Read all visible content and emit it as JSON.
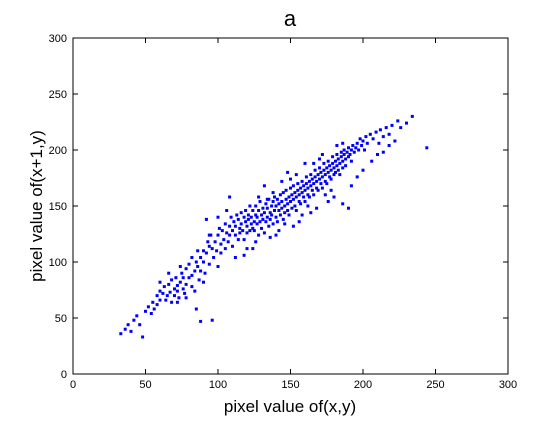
{
  "chart_data": {
    "type": "scatter",
    "title": "a",
    "xlabel": "pixel value of(x,y)",
    "ylabel": "pixel value of(x+1,y)",
    "xlim": [
      0,
      300
    ],
    "ylim": [
      0,
      300
    ],
    "xticks": [
      0,
      50,
      100,
      150,
      200,
      250,
      300
    ],
    "yticks": [
      0,
      50,
      100,
      150,
      200,
      250,
      300
    ],
    "grid": false,
    "legend": "none",
    "marker_color": "#0000ff",
    "points": [
      [
        33,
        36
      ],
      [
        36,
        40
      ],
      [
        38,
        44
      ],
      [
        40,
        38
      ],
      [
        42,
        48
      ],
      [
        44,
        52
      ],
      [
        46,
        44
      ],
      [
        48,
        33
      ],
      [
        50,
        56
      ],
      [
        52,
        60
      ],
      [
        54,
        54
      ],
      [
        55,
        64
      ],
      [
        56,
        58
      ],
      [
        58,
        70
      ],
      [
        58,
        62
      ],
      [
        60,
        66
      ],
      [
        60,
        74
      ],
      [
        62,
        72
      ],
      [
        63,
        78
      ],
      [
        64,
        66
      ],
      [
        65,
        70
      ],
      [
        66,
        80
      ],
      [
        67,
        73
      ],
      [
        68,
        64
      ],
      [
        68,
        84
      ],
      [
        70,
        76
      ],
      [
        70,
        70
      ],
      [
        71,
        86
      ],
      [
        72,
        79
      ],
      [
        72,
        74
      ],
      [
        73,
        68
      ],
      [
        74,
        82
      ],
      [
        75,
        90
      ],
      [
        76,
        76
      ],
      [
        76,
        86
      ],
      [
        77,
        72
      ],
      [
        78,
        94
      ],
      [
        78,
        80
      ],
      [
        80,
        86
      ],
      [
        80,
        98
      ],
      [
        82,
        88
      ],
      [
        82,
        78
      ],
      [
        84,
        92
      ],
      [
        85,
        100
      ],
      [
        85,
        58
      ],
      [
        86,
        96
      ],
      [
        87,
        84
      ],
      [
        88,
        104
      ],
      [
        88,
        92
      ],
      [
        88,
        47
      ],
      [
        90,
        110
      ],
      [
        90,
        100
      ],
      [
        91,
        90
      ],
      [
        92,
        108
      ],
      [
        93,
        118
      ],
      [
        94,
        98
      ],
      [
        94,
        114
      ],
      [
        95,
        124
      ],
      [
        96,
        112
      ],
      [
        97,
        104
      ],
      [
        98,
        118
      ],
      [
        99,
        110
      ],
      [
        100,
        124
      ],
      [
        100,
        96
      ],
      [
        101,
        130
      ],
      [
        102,
        116
      ],
      [
        102,
        108
      ],
      [
        103,
        128
      ],
      [
        104,
        120
      ],
      [
        105,
        134
      ],
      [
        105,
        112
      ],
      [
        106,
        126
      ],
      [
        106,
        146
      ],
      [
        107,
        118
      ],
      [
        108,
        132
      ],
      [
        108,
        124
      ],
      [
        109,
        140
      ],
      [
        110,
        114
      ],
      [
        110,
        128
      ],
      [
        111,
        136
      ],
      [
        112,
        124
      ],
      [
        112,
        132
      ],
      [
        113,
        142
      ],
      [
        114,
        120
      ],
      [
        114,
        138
      ],
      [
        115,
        130
      ],
      [
        115,
        126
      ],
      [
        116,
        144
      ],
      [
        116,
        134
      ],
      [
        117,
        128
      ],
      [
        118,
        140
      ],
      [
        118,
        120
      ],
      [
        119,
        136
      ],
      [
        119,
        146
      ],
      [
        120,
        132
      ],
      [
        120,
        126
      ],
      [
        121,
        142
      ],
      [
        121,
        138
      ],
      [
        122,
        128
      ],
      [
        122,
        150
      ],
      [
        123,
        134
      ],
      [
        123,
        140
      ],
      [
        124,
        130
      ],
      [
        124,
        146
      ],
      [
        125,
        136
      ],
      [
        125,
        128
      ],
      [
        126,
        142
      ],
      [
        126,
        150
      ],
      [
        127,
        134
      ],
      [
        127,
        140
      ],
      [
        128,
        124
      ],
      [
        128,
        146
      ],
      [
        129,
        136
      ],
      [
        129,
        154
      ],
      [
        130,
        130
      ],
      [
        130,
        142
      ],
      [
        131,
        148
      ],
      [
        131,
        138
      ],
      [
        132,
        126
      ],
      [
        132,
        144
      ],
      [
        133,
        152
      ],
      [
        133,
        136
      ],
      [
        134,
        140
      ],
      [
        134,
        148
      ],
      [
        135,
        132
      ],
      [
        135,
        156
      ],
      [
        136,
        144
      ],
      [
        136,
        138
      ],
      [
        137,
        150
      ],
      [
        137,
        142
      ],
      [
        138,
        134
      ],
      [
        138,
        154
      ],
      [
        139,
        146
      ],
      [
        139,
        158
      ],
      [
        140,
        140
      ],
      [
        140,
        150
      ],
      [
        141,
        136
      ],
      [
        141,
        156
      ],
      [
        142,
        146
      ],
      [
        142,
        152
      ],
      [
        143,
        142
      ],
      [
        143,
        160
      ],
      [
        144,
        148
      ],
      [
        144,
        154
      ],
      [
        145,
        138
      ],
      [
        145,
        162
      ],
      [
        146,
        150
      ],
      [
        146,
        144
      ],
      [
        147,
        156
      ],
      [
        147,
        164
      ],
      [
        148,
        152
      ],
      [
        148,
        146
      ],
      [
        149,
        158
      ],
      [
        149,
        142
      ],
      [
        150,
        154
      ],
      [
        150,
        166
      ],
      [
        151,
        148
      ],
      [
        151,
        160
      ],
      [
        152,
        156
      ],
      [
        152,
        168
      ],
      [
        153,
        150
      ],
      [
        153,
        162
      ],
      [
        154,
        158
      ],
      [
        154,
        146
      ],
      [
        155,
        164
      ],
      [
        155,
        170
      ],
      [
        156,
        154
      ],
      [
        156,
        160
      ],
      [
        157,
        166
      ],
      [
        157,
        152
      ],
      [
        158,
        162
      ],
      [
        158,
        172
      ],
      [
        159,
        158
      ],
      [
        159,
        168
      ],
      [
        160,
        164
      ],
      [
        160,
        154
      ],
      [
        161,
        170
      ],
      [
        161,
        176
      ],
      [
        162,
        160
      ],
      [
        162,
        166
      ],
      [
        163,
        172
      ],
      [
        163,
        158
      ],
      [
        164,
        168
      ],
      [
        164,
        178
      ],
      [
        165,
        164
      ],
      [
        165,
        174
      ],
      [
        166,
        170
      ],
      [
        166,
        160
      ],
      [
        167,
        176
      ],
      [
        167,
        182
      ],
      [
        168,
        166
      ],
      [
        168,
        172
      ],
      [
        169,
        178
      ],
      [
        169,
        164
      ],
      [
        170,
        174
      ],
      [
        170,
        184
      ],
      [
        171,
        170
      ],
      [
        171,
        180
      ],
      [
        172,
        176
      ],
      [
        172,
        166
      ],
      [
        173,
        182
      ],
      [
        173,
        188
      ],
      [
        174,
        172
      ],
      [
        174,
        178
      ],
      [
        175,
        184
      ],
      [
        175,
        170
      ],
      [
        176,
        180
      ],
      [
        176,
        190
      ],
      [
        177,
        176
      ],
      [
        177,
        186
      ],
      [
        178,
        182
      ],
      [
        178,
        174
      ],
      [
        179,
        188
      ],
      [
        179,
        194
      ],
      [
        180,
        184
      ],
      [
        180,
        178
      ],
      [
        181,
        190
      ],
      [
        181,
        180
      ],
      [
        182,
        186
      ],
      [
        182,
        196
      ],
      [
        183,
        182
      ],
      [
        183,
        192
      ],
      [
        184,
        188
      ],
      [
        184,
        178
      ],
      [
        185,
        194
      ],
      [
        185,
        198
      ],
      [
        186,
        190
      ],
      [
        186,
        184
      ],
      [
        187,
        196
      ],
      [
        187,
        200
      ],
      [
        188,
        192
      ],
      [
        188,
        186
      ],
      [
        189,
        198
      ],
      [
        190,
        194
      ],
      [
        190,
        202
      ],
      [
        191,
        196
      ],
      [
        192,
        200
      ],
      [
        192,
        190
      ],
      [
        193,
        204
      ],
      [
        194,
        198
      ],
      [
        195,
        202
      ],
      [
        196,
        206
      ],
      [
        197,
        200
      ],
      [
        198,
        210
      ],
      [
        199,
        204
      ],
      [
        200,
        208
      ],
      [
        201,
        200
      ],
      [
        202,
        212
      ],
      [
        203,
        206
      ],
      [
        205,
        214
      ],
      [
        207,
        210
      ],
      [
        209,
        216
      ],
      [
        211,
        206
      ],
      [
        212,
        218
      ],
      [
        214,
        212
      ],
      [
        216,
        220
      ],
      [
        218,
        214
      ],
      [
        220,
        222
      ],
      [
        224,
        226
      ],
      [
        226,
        220
      ],
      [
        230,
        224
      ],
      [
        234,
        230
      ],
      [
        244,
        202
      ],
      [
        96,
        48
      ],
      [
        92,
        138
      ],
      [
        100,
        140
      ],
      [
        108,
        158
      ],
      [
        112,
        104
      ],
      [
        118,
        106
      ],
      [
        124,
        112
      ],
      [
        128,
        158
      ],
      [
        132,
        168
      ],
      [
        136,
        122
      ],
      [
        140,
        124
      ],
      [
        144,
        172
      ],
      [
        148,
        180
      ],
      [
        152,
        132
      ],
      [
        156,
        136
      ],
      [
        160,
        188
      ],
      [
        164,
        144
      ],
      [
        168,
        148
      ],
      [
        172,
        196
      ],
      [
        176,
        154
      ],
      [
        180,
        158
      ],
      [
        186,
        152
      ],
      [
        192,
        168
      ],
      [
        196,
        176
      ],
      [
        200,
        182
      ],
      [
        206,
        190
      ],
      [
        210,
        196
      ],
      [
        214,
        198
      ],
      [
        218,
        204
      ],
      [
        222,
        208
      ],
      [
        190,
        148
      ],
      [
        120,
        112
      ],
      [
        126,
        118
      ],
      [
        134,
        156
      ],
      [
        138,
        162
      ],
      [
        142,
        128
      ],
      [
        146,
        134
      ],
      [
        150,
        174
      ],
      [
        154,
        178
      ],
      [
        158,
        142
      ],
      [
        162,
        150
      ],
      [
        166,
        188
      ],
      [
        170,
        192
      ],
      [
        174,
        160
      ],
      [
        178,
        164
      ],
      [
        182,
        204
      ],
      [
        186,
        206
      ],
      [
        60,
        82
      ],
      [
        66,
        90
      ],
      [
        72,
        64
      ],
      [
        74,
        96
      ],
      [
        78,
        68
      ],
      [
        82,
        104
      ],
      [
        84,
        74
      ],
      [
        86,
        110
      ],
      [
        90,
        82
      ],
      [
        94,
        124
      ]
    ]
  }
}
